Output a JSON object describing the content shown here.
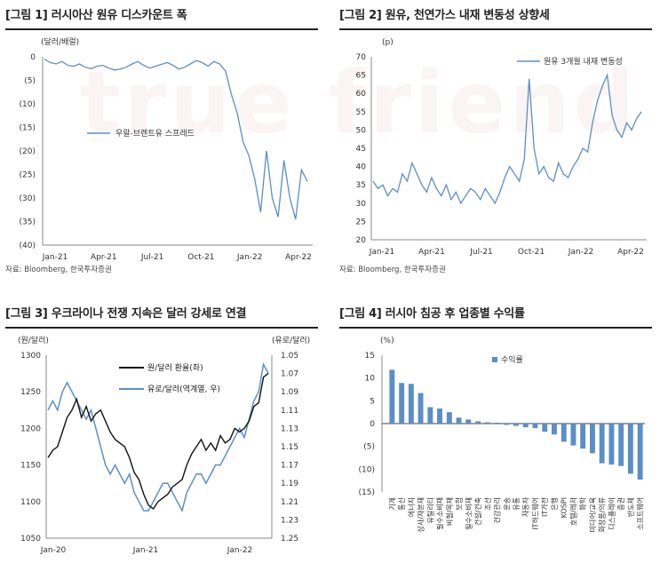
{
  "watermark": "true friend",
  "panels": [
    {
      "title": "[그림 1] 러시아산 원유 디스카운트 폭",
      "source": "자료: Bloomberg, 한국투자증권"
    },
    {
      "title": "[그림 2] 원유, 천연가스 내재 변동성 상향세",
      "source": "자료: Bloomberg, 한국투자증권"
    },
    {
      "title": "[그림 3] 우크라이나 전쟁 지속은 달러 강세로 연결",
      "source": ""
    },
    {
      "title": "[그림 4] 러시아 침공 후 업종별 수익률",
      "source": ""
    }
  ],
  "chart_data": [
    {
      "type": "line",
      "unit_label": "(달러/배럴)",
      "x_ticks": [
        "Jan-21",
        "Apr-21",
        "Jul-21",
        "Oct-21",
        "Jan-22",
        "Apr-22"
      ],
      "ylim": [
        -40,
        0
      ],
      "y_ticks": [
        "0",
        "(5)",
        "(10)",
        "(15)",
        "(20)",
        "(25)",
        "(30)",
        "(35)",
        "(40)"
      ],
      "color": "#5b8ec7",
      "series": [
        {
          "name": "우랄-브렌트유 스프레드",
          "values": [
            -0.5,
            -1.2,
            -1.5,
            -1.0,
            -1.8,
            -2.0,
            -1.5,
            -2.2,
            -2.5,
            -2.0,
            -1.8,
            -2.4,
            -2.8,
            -2.6,
            -2.2,
            -1.5,
            -1.0,
            -1.8,
            -2.4,
            -2.0,
            -1.6,
            -1.2,
            -1.8,
            -2.6,
            -2.2,
            -1.5,
            -0.8,
            -1.2,
            -2.0,
            -1.0,
            -1.5,
            -3.0,
            -8.0,
            -12.0,
            -18.0,
            -21.0,
            -26.0,
            -33.0,
            -20.0,
            -30.0,
            -34.0,
            -22.0,
            -30.0,
            -34.5,
            -24.0,
            -26.5
          ]
        }
      ]
    },
    {
      "type": "line",
      "unit_label": "(p)",
      "x_ticks": [
        "Jan-21",
        "Apr-21",
        "Jul-21",
        "Oct-21",
        "Jan-22",
        "Apr-22"
      ],
      "ylim": [
        20,
        70
      ],
      "y_ticks": [
        "70",
        "65",
        "60",
        "55",
        "50",
        "45",
        "40",
        "35",
        "30",
        "25",
        "20"
      ],
      "color": "#5b8ec7",
      "series": [
        {
          "name": "원유 3개월 내재 변동성",
          "values": [
            36,
            34,
            35,
            32,
            34,
            33,
            38,
            36,
            41,
            38,
            35,
            33,
            37,
            34,
            32,
            35,
            31,
            33,
            30,
            32,
            34,
            33,
            31,
            34,
            32,
            30,
            33,
            37,
            40,
            38,
            36,
            42,
            64,
            45,
            38,
            40,
            37,
            36,
            41,
            38,
            37,
            40,
            42,
            45,
            44,
            52,
            58,
            62,
            65,
            54,
            50,
            48,
            52,
            50,
            53,
            55
          ]
        }
      ]
    },
    {
      "type": "line",
      "left_unit": "(원/달러)",
      "right_unit": "(유로/달러)",
      "x_ticks": [
        "Jan-20",
        "Jan-21",
        "Jan-22"
      ],
      "ylim_left": [
        1050,
        1300
      ],
      "ylim_right": [
        1.05,
        1.25
      ],
      "y_ticks_left": [
        "1300",
        "1250",
        "1200",
        "1150",
        "1100",
        "1050"
      ],
      "y_ticks_right": [
        "1.05",
        "1.07",
        "1.09",
        "1.11",
        "1.13",
        "1.15",
        "1.17",
        "1.19",
        "1.21",
        "1.23",
        "1.25"
      ],
      "series": [
        {
          "name": "원/달러 환율(좌)",
          "color": "#111111",
          "values": [
            1160,
            1170,
            1175,
            1195,
            1215,
            1225,
            1240,
            1215,
            1230,
            1210,
            1220,
            1225,
            1210,
            1195,
            1185,
            1180,
            1175,
            1160,
            1140,
            1130,
            1110,
            1095,
            1090,
            1100,
            1105,
            1110,
            1120,
            1125,
            1130,
            1150,
            1165,
            1175,
            1185,
            1170,
            1180,
            1170,
            1190,
            1180,
            1185,
            1200,
            1195,
            1200,
            1210,
            1230,
            1235,
            1270,
            1275
          ]
        },
        {
          "name": "유로/달러(역계열, 우)",
          "color": "#5b8ec7",
          "values": [
            1.11,
            1.1,
            1.11,
            1.09,
            1.08,
            1.09,
            1.1,
            1.11,
            1.12,
            1.11,
            1.13,
            1.15,
            1.17,
            1.18,
            1.17,
            1.18,
            1.19,
            1.18,
            1.2,
            1.21,
            1.22,
            1.22,
            1.21,
            1.2,
            1.19,
            1.19,
            1.2,
            1.21,
            1.22,
            1.2,
            1.19,
            1.18,
            1.18,
            1.19,
            1.18,
            1.17,
            1.17,
            1.16,
            1.15,
            1.14,
            1.13,
            1.14,
            1.12,
            1.1,
            1.09,
            1.06,
            1.07
          ]
        }
      ]
    },
    {
      "type": "bar",
      "unit_label": "(%)",
      "legend": "수익률",
      "color": "#5b8ec7",
      "ylim": [
        -15,
        15
      ],
      "y_ticks": [
        "15",
        "10",
        "5",
        "0",
        "(5)",
        "(10)",
        "(15)"
      ],
      "categories": [
        "기계",
        "통신",
        "에너지",
        "상사/자본재",
        "유틸리티",
        "필수소비재",
        "비철/목재",
        "보험",
        "필수소비재",
        "건설/건축",
        "조선",
        "건강관리",
        "운송",
        "유통",
        "자동차",
        "IT하드웨어",
        "IT가전",
        "은행",
        "KOSPI",
        "호텔/레저",
        "화학",
        "미디어/교육",
        "화장품/의류",
        "디스플레이",
        "증권",
        "반도체",
        "소프트웨어"
      ],
      "values": [
        11.8,
        8.9,
        8.7,
        6.7,
        3.6,
        3.3,
        2.5,
        1.3,
        0.9,
        0.5,
        0.3,
        0.2,
        -0.3,
        -0.5,
        -0.8,
        -1.0,
        -1.8,
        -2.4,
        -4.0,
        -4.8,
        -5.5,
        -6.5,
        -8.7,
        -9.0,
        -9.3,
        -11.0,
        -12.3
      ]
    }
  ]
}
